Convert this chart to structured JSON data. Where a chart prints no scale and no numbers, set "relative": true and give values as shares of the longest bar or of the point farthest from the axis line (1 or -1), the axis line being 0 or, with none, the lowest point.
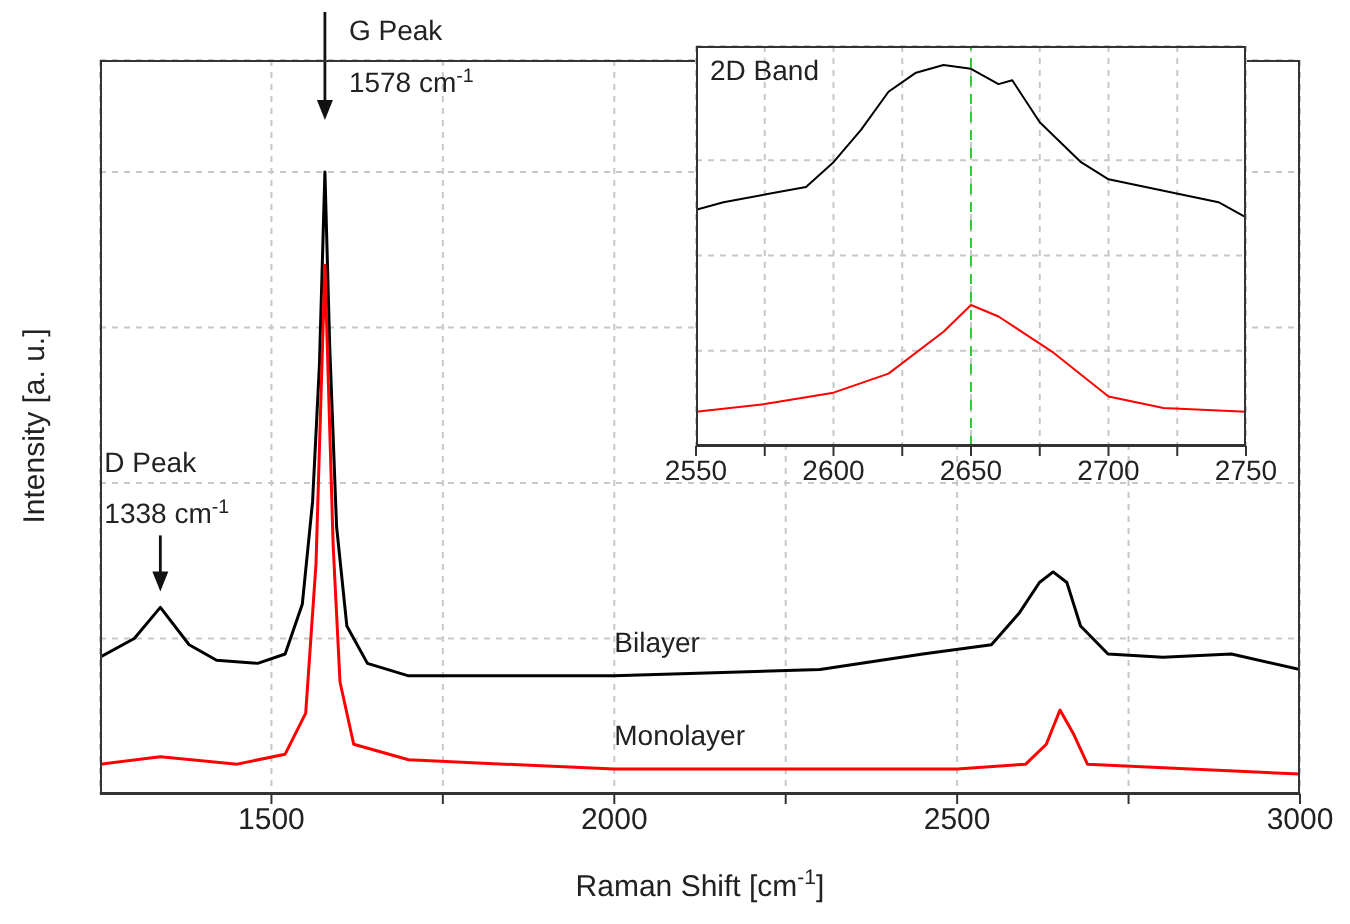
{
  "chart_data": [
    {
      "type": "line",
      "xlabel": "Raman Shift [cm$^{-1}$]",
      "ylabel": "Intensity [a. u.]",
      "relative": true,
      "xlim": [
        1250,
        3000
      ],
      "xticks": [
        1500,
        {
          "value": 1750,
          "label": null
        },
        2000,
        {
          "value": 2250,
          "label": null
        },
        2500,
        {
          "value": 2750,
          "label": null
        },
        3000
      ],
      "grid": true,
      "annotations": [
        {
          "text": "D Peak\n1338 cm$^{-1}$",
          "x": 1338,
          "y": 0.3
        },
        {
          "text": "G Peak\n1578 cm$^{-1}$",
          "x": 1578,
          "y": 1.0
        }
      ],
      "series": [
        {
          "name": "Bilayer",
          "color": "#000000",
          "x": [
            1250,
            1300,
            1338,
            1380,
            1420,
            1480,
            1520,
            1545,
            1560,
            1570,
            1578,
            1585,
            1595,
            1610,
            1640,
            1700,
            2000,
            2300,
            2450,
            2550,
            2590,
            2620,
            2640,
            2660,
            2680,
            2720,
            2800,
            2900,
            3000
          ],
          "values": [
            0.22,
            0.25,
            0.3,
            0.24,
            0.215,
            0.21,
            0.225,
            0.305,
            0.47,
            0.69,
            1.0,
            0.72,
            0.43,
            0.27,
            0.21,
            0.19,
            0.19,
            0.2,
            0.225,
            0.24,
            0.29,
            0.34,
            0.357,
            0.34,
            0.27,
            0.225,
            0.22,
            0.225,
            0.2
          ]
        },
        {
          "name": "Monolayer",
          "color": "#ff0000",
          "x": [
            1250,
            1338,
            1450,
            1520,
            1550,
            1565,
            1578,
            1590,
            1600,
            1620,
            1700,
            2000,
            2500,
            2600,
            2630,
            2650,
            2670,
            2690,
            3000
          ],
          "values": [
            0.048,
            0.06,
            0.048,
            0.064,
            0.13,
            0.37,
            0.85,
            0.4,
            0.18,
            0.08,
            0.055,
            0.04,
            0.04,
            0.048,
            0.08,
            0.135,
            0.096,
            0.048,
            0.032
          ]
        }
      ]
    },
    {
      "type": "line",
      "title": "2D Band",
      "relative": true,
      "xlim": [
        2550,
        2750
      ],
      "xticks": [
        2550,
        {
          "value": 2575,
          "label": null
        },
        2600,
        {
          "value": 2625,
          "label": null
        },
        2650,
        {
          "value": 2675,
          "label": null
        },
        2700,
        {
          "value": 2725,
          "label": null
        },
        2750
      ],
      "grid": true,
      "ref_lines": [
        {
          "axis": "x",
          "value": 2650,
          "color": "#33cc33",
          "line_style": "dashed"
        }
      ],
      "series": [
        {
          "color": "#000000",
          "x": [
            2550,
            2560,
            2575,
            2590,
            2600,
            2610,
            2620,
            2630,
            2640,
            2650,
            2660,
            2665,
            2675,
            2690,
            2700,
            2720,
            2740,
            2750
          ],
          "values": [
            0.62,
            0.64,
            0.66,
            0.68,
            0.745,
            0.83,
            0.93,
            0.98,
            1.0,
            0.99,
            0.95,
            0.96,
            0.85,
            0.745,
            0.7,
            0.67,
            0.64,
            0.6
          ]
        },
        {
          "color": "#ff0000",
          "x": [
            2550,
            2575,
            2600,
            2620,
            2640,
            2650,
            2660,
            2680,
            2700,
            2720,
            2750
          ],
          "values": [
            0.09,
            0.11,
            0.14,
            0.19,
            0.3,
            0.37,
            0.34,
            0.245,
            0.13,
            0.1,
            0.09
          ]
        }
      ]
    }
  ]
}
